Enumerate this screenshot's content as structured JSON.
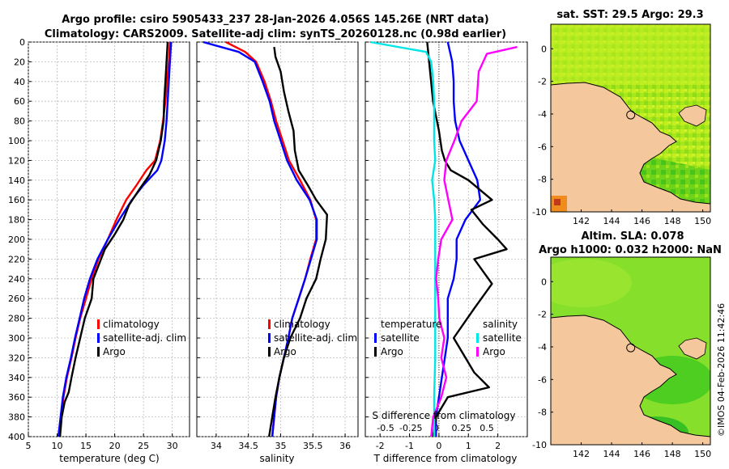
{
  "header": {
    "title_line1": "Argo profile: csiro 5905433_237 28-Jan-2026 4.056S 145.26E (NRT data)",
    "title_line2": "Climatology: CARS2009. Satellite-adj clim: synTS_20260128.nc (0.98d earlier)"
  },
  "credit": "©IMOS 04-Feb-2026 11:42:46",
  "colors": {
    "climatology": "#ff0000",
    "satellite": "#0000ff",
    "argo": "#000000",
    "s_satellite": "#00e5e5",
    "s_argo": "#ff00ff",
    "land": "#f5c79c"
  },
  "chart_data": [
    {
      "id": "temperature-panel",
      "type": "line",
      "xlabel": "temperature (deg C)",
      "ylabel": "",
      "xlim": [
        5,
        33
      ],
      "ylim": [
        400,
        0
      ],
      "xticks": [
        5,
        10,
        15,
        20,
        25,
        30
      ],
      "yticks": [
        0,
        20,
        40,
        60,
        80,
        100,
        120,
        140,
        160,
        180,
        200,
        220,
        240,
        260,
        280,
        300,
        320,
        340,
        360,
        380,
        400
      ],
      "legend": [
        "climatology",
        "satellite-adj. clim",
        "Argo"
      ],
      "series": [
        {
          "name": "climatology",
          "color": "#ff0000",
          "x": [
            29.6,
            29.4,
            29.1,
            28.8,
            28.4,
            27.9,
            27.0,
            25.5,
            23.8,
            22.0,
            20.3,
            18.8,
            17.2,
            16.0,
            15.0,
            14.0,
            13.2,
            12.5,
            11.7,
            11.1,
            10.7,
            10.3
          ],
          "y": [
            0,
            20,
            40,
            60,
            80,
            100,
            120,
            130,
            145,
            160,
            180,
            200,
            220,
            240,
            260,
            280,
            300,
            320,
            340,
            360,
            380,
            400
          ]
        },
        {
          "name": "satellite-adj. clim",
          "color": "#0000ff",
          "x": [
            29.8,
            29.6,
            29.4,
            29.2,
            29.0,
            28.7,
            28.1,
            27.4,
            25.0,
            23.0,
            20.8,
            18.8,
            17.0,
            15.7,
            14.7,
            13.9,
            13.1,
            12.4,
            11.6,
            11.0,
            10.6,
            10.2
          ],
          "y": [
            0,
            20,
            40,
            60,
            80,
            100,
            120,
            130,
            145,
            160,
            180,
            200,
            220,
            240,
            260,
            280,
            300,
            320,
            340,
            360,
            380,
            400
          ]
        },
        {
          "name": "Argo",
          "color": "#000000",
          "x": [
            29.2,
            29.0,
            28.8,
            28.6,
            28.5,
            28.0,
            27.2,
            26.0,
            24.2,
            22.5,
            21.5,
            20.0,
            18.3,
            17.3,
            16.3,
            16.0,
            14.8,
            14.0,
            13.2,
            12.5,
            12.0,
            11.3,
            10.8,
            10.5
          ],
          "y": [
            0,
            20,
            40,
            60,
            80,
            100,
            120,
            135,
            150,
            165,
            180,
            195,
            210,
            225,
            240,
            260,
            280,
            300,
            320,
            340,
            355,
            365,
            380,
            400
          ]
        }
      ]
    },
    {
      "id": "salinity-panel",
      "type": "line",
      "xlabel": "salinity",
      "ylabel": "",
      "xlim": [
        33.7,
        36.2
      ],
      "ylim": [
        400,
        0
      ],
      "xticks": [
        34,
        34.5,
        35,
        35.5,
        36
      ],
      "legend": [
        "climatology",
        "satellite-adj. clim",
        "Argo"
      ],
      "series": [
        {
          "name": "climatology",
          "color": "#ff0000",
          "x": [
            34.15,
            34.45,
            34.62,
            34.75,
            34.85,
            34.93,
            35.03,
            35.13,
            35.3,
            35.46,
            35.55,
            35.55,
            35.46,
            35.38,
            35.28,
            35.18,
            35.12,
            35.05,
            34.98,
            34.93,
            34.87
          ],
          "y": [
            0,
            10,
            20,
            40,
            60,
            80,
            100,
            120,
            140,
            160,
            180,
            200,
            220,
            240,
            260,
            280,
            300,
            320,
            340,
            360,
            400
          ]
        },
        {
          "name": "satellite-adj. clim",
          "color": "#0000ff",
          "x": [
            33.8,
            34.35,
            34.6,
            34.72,
            34.83,
            34.9,
            35.0,
            35.1,
            35.25,
            35.45,
            35.56,
            35.56,
            35.47,
            35.38,
            35.28,
            35.18,
            35.12,
            35.05,
            34.98,
            34.93,
            34.87
          ],
          "y": [
            0,
            10,
            20,
            40,
            60,
            80,
            100,
            120,
            140,
            160,
            180,
            200,
            220,
            240,
            260,
            280,
            300,
            320,
            340,
            360,
            400
          ]
        },
        {
          "name": "Argo",
          "color": "#000000",
          "x": [
            34.9,
            34.92,
            35.0,
            35.05,
            35.12,
            35.2,
            35.22,
            35.28,
            35.42,
            35.55,
            35.72,
            35.7,
            35.62,
            35.55,
            35.4,
            35.3,
            35.15,
            35.05,
            34.98,
            34.92,
            34.87,
            34.82
          ],
          "y": [
            5,
            15,
            30,
            50,
            70,
            90,
            110,
            130,
            145,
            160,
            175,
            200,
            220,
            240,
            260,
            280,
            300,
            320,
            340,
            360,
            380,
            400
          ]
        }
      ]
    },
    {
      "id": "difference-panel",
      "type": "line",
      "xlabel": "T difference from climatology",
      "x2label": "S difference from climatology",
      "xlim": [
        -2.5,
        3.0
      ],
      "ylim": [
        400,
        0
      ],
      "xticks": [
        -2,
        -1,
        0,
        1,
        2
      ],
      "x2lim": [
        -0.7,
        0.9
      ],
      "x2ticks": [
        -0.5,
        -0.25,
        0,
        0.25,
        0.5
      ],
      "legend_temperature": [
        "temperature",
        "satellite",
        "Argo"
      ],
      "legend_salinity": [
        "salinity",
        "satellite",
        "Argo"
      ],
      "series": [
        {
          "name": "T satellite",
          "axis": "T",
          "color": "#0000ff",
          "x": [
            0.3,
            0.45,
            0.5,
            0.5,
            0.55,
            0.7,
            1.0,
            1.3,
            1.4,
            0.9,
            0.6,
            0.6,
            0.5,
            0.3,
            0.3,
            0.3,
            0.2,
            0.1,
            0.0,
            -0.1,
            -0.1
          ],
          "y": [
            0,
            20,
            40,
            60,
            80,
            100,
            120,
            140,
            160,
            180,
            200,
            220,
            240,
            260,
            280,
            300,
            320,
            340,
            360,
            380,
            400
          ]
        },
        {
          "name": "T Argo",
          "axis": "T",
          "color": "#000000",
          "x": [
            -0.4,
            -0.3,
            -0.2,
            0.0,
            0.1,
            0.2,
            0.4,
            1.0,
            1.8,
            1.1,
            1.5,
            2.0,
            2.3,
            1.2,
            1.8,
            1.2,
            0.5,
            0.9,
            1.2,
            1.7,
            0.3,
            -0.1,
            -0.2
          ],
          "y": [
            0,
            30,
            60,
            90,
            110,
            120,
            130,
            140,
            160,
            170,
            185,
            200,
            210,
            220,
            245,
            270,
            300,
            320,
            335,
            350,
            360,
            380,
            400
          ]
        },
        {
          "name": "S satellite",
          "axis": "S",
          "color": "#00e5e5",
          "x": [
            -0.65,
            -0.1,
            -0.05,
            -0.03,
            -0.02,
            -0.02,
            -0.02,
            -0.01,
            -0.04,
            -0.02,
            -0.01,
            -0.01,
            -0.01,
            -0.01,
            -0.01,
            -0.01,
            -0.01,
            -0.01,
            -0.02,
            -0.02
          ],
          "y": [
            0,
            10,
            20,
            40,
            60,
            80,
            100,
            120,
            140,
            160,
            180,
            200,
            220,
            240,
            260,
            280,
            300,
            320,
            360,
            400
          ]
        },
        {
          "name": "S Argo",
          "axis": "S",
          "color": "#ff00ff",
          "x": [
            0.8,
            0.5,
            0.42,
            0.4,
            0.25,
            0.18,
            0.1,
            0.08,
            0.12,
            0.16,
            0.05,
            0.02,
            0.0,
            0.02,
            0.03,
            0.08,
            0.05,
            0.1,
            0.05,
            -0.03,
            -0.05
          ],
          "y": [
            5,
            12,
            30,
            60,
            80,
            100,
            120,
            140,
            160,
            180,
            200,
            220,
            240,
            260,
            280,
            300,
            320,
            340,
            360,
            380,
            400
          ]
        }
      ]
    },
    {
      "id": "sst-map",
      "type": "heatmap",
      "title": "sat. SST: 29.5 Argo: 29.3",
      "xlim": [
        140,
        150.5
      ],
      "ylim": [
        -10,
        1.5
      ],
      "xticks": [
        142,
        144,
        146,
        148,
        150
      ],
      "yticks": [
        0,
        -2,
        -4,
        -6,
        -8,
        -10
      ],
      "argo_position": [
        145.26,
        -4.056
      ]
    },
    {
      "id": "sla-map",
      "type": "heatmap",
      "title": "Altim. SLA: 0.078",
      "subtitle": "Argo h1000: 0.032 h2000: NaN",
      "xlim": [
        140,
        150.5
      ],
      "ylim": [
        -10,
        1.5
      ],
      "xticks": [
        142,
        144,
        146,
        148,
        150
      ],
      "yticks": [
        0,
        -2,
        -4,
        -6,
        -8,
        -10
      ],
      "argo_position": [
        145.26,
        -4.056
      ]
    }
  ]
}
